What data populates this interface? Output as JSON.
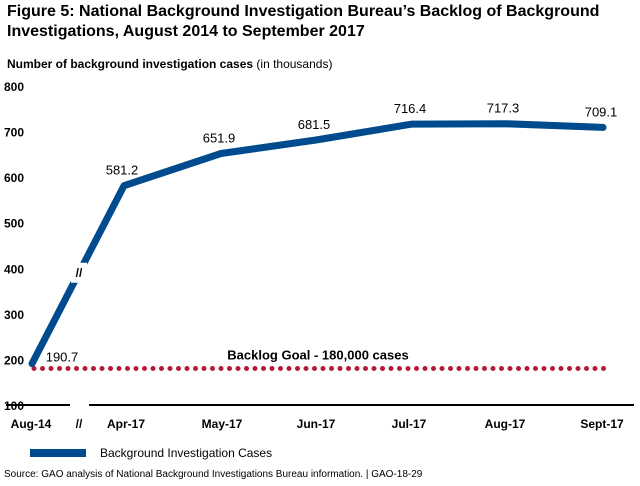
{
  "title": "Figure 5: National Background Investigation Bureau’s Backlog of Background Investigations, August 2014 to September 2017",
  "ylabel": {
    "main": "Number of background investigation cases",
    "unit": "(in thousands)"
  },
  "source": "Source: GAO analysis of National Background Investigations Bureau information.  |  GAO-18-29",
  "colors": {
    "series": "#004b8d",
    "goal": "#b5193a"
  },
  "chart_data": {
    "type": "line",
    "categories": [
      "Aug-14",
      "Apr-17",
      "May-17",
      "Jun-17",
      "Jul-17",
      "Aug-17",
      "Sept-17"
    ],
    "series": [
      {
        "name": "Background Investigation Cases",
        "values": [
          190.7,
          581.2,
          651.9,
          681.5,
          716.4,
          717.3,
          709.1
        ],
        "labels": [
          "190.7",
          "581.2",
          "651.9",
          "681.5",
          "716.4",
          "717.3",
          "709.1"
        ]
      }
    ],
    "reference_line": {
      "label": "Backlog Goal - 180,000 cases",
      "value": 180
    },
    "yticks": [
      "100",
      "200",
      "300",
      "400",
      "500",
      "600",
      "700",
      "800"
    ],
    "ylim": [
      100,
      800
    ],
    "axis_break_mark": "//",
    "legend_position": "bottom-left",
    "grid": false
  }
}
